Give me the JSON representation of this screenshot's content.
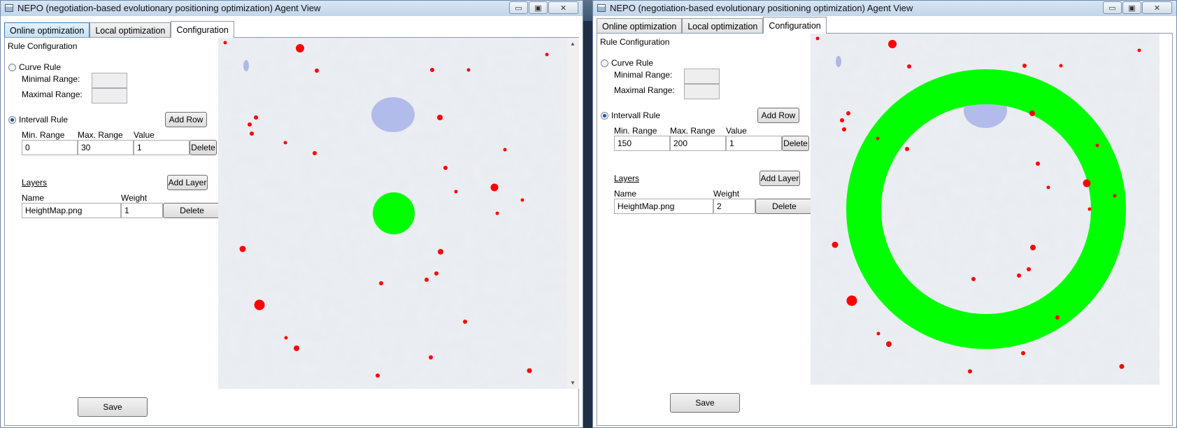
{
  "window_title": "NEPO (negotiation-based evolutionary positioning optimization) Agent View",
  "window_controls": {
    "minimize": "▭",
    "maximize": "▣",
    "close": "✕"
  },
  "tabs": [
    "Online optimization",
    "Local optimization",
    "Configuration"
  ],
  "rule_configuration_label": "Rule Configuration",
  "curve_rule": {
    "label": "Curve Rule",
    "min_label": "Minimal Range:",
    "max_label": "Maximal Range:"
  },
  "intervall_rule": {
    "label": "Intervall Rule",
    "add_row": "Add Row",
    "columns": [
      "Min. Range",
      "Max. Range",
      "Value"
    ],
    "delete": "Delete"
  },
  "layers": {
    "title": "Layers",
    "add_layer": "Add Layer",
    "columns": [
      "Name",
      "Weight"
    ],
    "delete": "Delete"
  },
  "save": "Save",
  "colors": {
    "marker": "#ff0000",
    "zone": "#00ff00",
    "water": "#9aa6e8",
    "map_base": "#dfe3ea"
  },
  "windows": [
    {
      "interval_row": {
        "min": "0",
        "max": "30",
        "value": "1"
      },
      "layer_row": {
        "name": "HeightMap.png",
        "weight": "1"
      },
      "radio_selected": "intervall",
      "zone_shape": "filled-circle"
    },
    {
      "interval_row": {
        "min": "150",
        "max": "200",
        "value": "1"
      },
      "layer_row": {
        "name": "HeightMap.png",
        "weight": "2"
      },
      "radio_selected": "intervall",
      "zone_shape": "ring"
    }
  ]
}
